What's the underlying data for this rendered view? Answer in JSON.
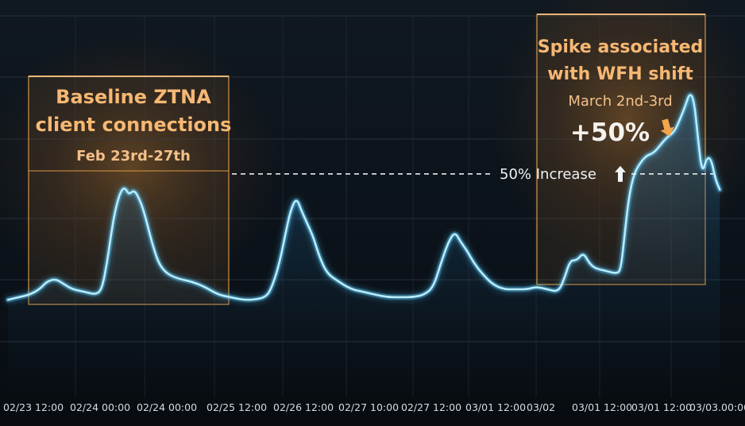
{
  "chart_data": {
    "type": "line",
    "xlabel": "",
    "ylabel": "",
    "grid": true,
    "x_tick_labels": [
      "02/23 12:00",
      "02/24 00:00",
      "02/24 00:00",
      "02/25 12:00",
      "02/26 12:00",
      "02/27 10:00",
      "02/27 12:00",
      "03/01 12:00",
      "03/02",
      "03/01 12:00",
      "03/01 12:00",
      "03/03.00:00"
    ],
    "ylim": [
      0,
      100
    ],
    "series": [
      {
        "values": [
          [
            0.0,
            16
          ],
          [
            1.5,
            17
          ],
          [
            3.0,
            18
          ],
          [
            4.3,
            20
          ],
          [
            5.3,
            23
          ],
          [
            6.5,
            24
          ],
          [
            7.6,
            22
          ],
          [
            8.8,
            20
          ],
          [
            10.5,
            19
          ],
          [
            12.0,
            18
          ],
          [
            12.8,
            20
          ],
          [
            13.5,
            30
          ],
          [
            14.0,
            40
          ],
          [
            14.6,
            50
          ],
          [
            15.3,
            57
          ],
          [
            15.9,
            59
          ],
          [
            16.5,
            56
          ],
          [
            17.2,
            58
          ],
          [
            18.0,
            54
          ],
          [
            18.7,
            48
          ],
          [
            19.6,
            38
          ],
          [
            20.5,
            30
          ],
          [
            21.6,
            26
          ],
          [
            23.2,
            24
          ],
          [
            25.0,
            23
          ],
          [
            26.8,
            21
          ],
          [
            28.6,
            18
          ],
          [
            30.3,
            17
          ],
          [
            32.0,
            16
          ],
          [
            33.5,
            16
          ],
          [
            35.2,
            17
          ],
          [
            36.0,
            21
          ],
          [
            37.0,
            30
          ],
          [
            37.8,
            41
          ],
          [
            38.5,
            50
          ],
          [
            39.3,
            55
          ],
          [
            40.0,
            50
          ],
          [
            40.8,
            45
          ],
          [
            41.6,
            40
          ],
          [
            42.5,
            32
          ],
          [
            43.5,
            26
          ],
          [
            45.0,
            23
          ],
          [
            46.8,
            20
          ],
          [
            48.5,
            19
          ],
          [
            50.0,
            18
          ],
          [
            51.8,
            17
          ],
          [
            53.5,
            17
          ],
          [
            55.2,
            17
          ],
          [
            56.8,
            18
          ],
          [
            58.0,
            21
          ],
          [
            59.0,
            30
          ],
          [
            60.0,
            38
          ],
          [
            60.9,
            42
          ],
          [
            61.7,
            38
          ],
          [
            62.5,
            35
          ],
          [
            63.5,
            30
          ],
          [
            64.6,
            26
          ],
          [
            66.0,
            22
          ],
          [
            67.5,
            20
          ],
          [
            69.2,
            20
          ],
          [
            70.8,
            20
          ],
          [
            72.0,
            21
          ],
          [
            73.5,
            20
          ],
          [
            75.0,
            19
          ],
          [
            75.8,
            24
          ],
          [
            76.6,
            31
          ],
          [
            77.5,
            31
          ],
          [
            78.4,
            34
          ],
          [
            79.2,
            30
          ],
          [
            80.0,
            28
          ],
          [
            81.5,
            27
          ],
          [
            82.8,
            26
          ],
          [
            83.5,
            27
          ],
          [
            84.0,
            40
          ],
          [
            84.6,
            55
          ],
          [
            85.3,
            64
          ],
          [
            86.1,
            68
          ],
          [
            87.0,
            71
          ],
          [
            88.0,
            72
          ],
          [
            88.9,
            75
          ],
          [
            89.8,
            78
          ],
          [
            90.8,
            80
          ],
          [
            91.6,
            85
          ],
          [
            92.3,
            90
          ],
          [
            92.9,
            95
          ],
          [
            93.5,
            92
          ],
          [
            94.0,
            78
          ],
          [
            94.6,
            64
          ],
          [
            95.2,
            70
          ],
          [
            95.8,
            70
          ],
          [
            96.4,
            62
          ],
          [
            97.0,
            58
          ]
        ]
      }
    ],
    "reference_line": {
      "value": 64,
      "label": "50% Increase",
      "arrow": "up-arrow"
    },
    "annotations": [
      {
        "lines": [
          "Baseline ZTNA",
          "client connections",
          "Feb 23rd-27th"
        ]
      },
      {
        "lines": [
          "Spike associated",
          "with WFH shift",
          "March 2nd-3rd"
        ],
        "callout": "+50%",
        "arrow": "down-arrow"
      }
    ],
    "colors": {
      "background": "#0d131b",
      "line": "#b8ecff",
      "glow": "#4fc3f7",
      "annotation": "#f2a54a",
      "grid": "#2a323d"
    }
  }
}
